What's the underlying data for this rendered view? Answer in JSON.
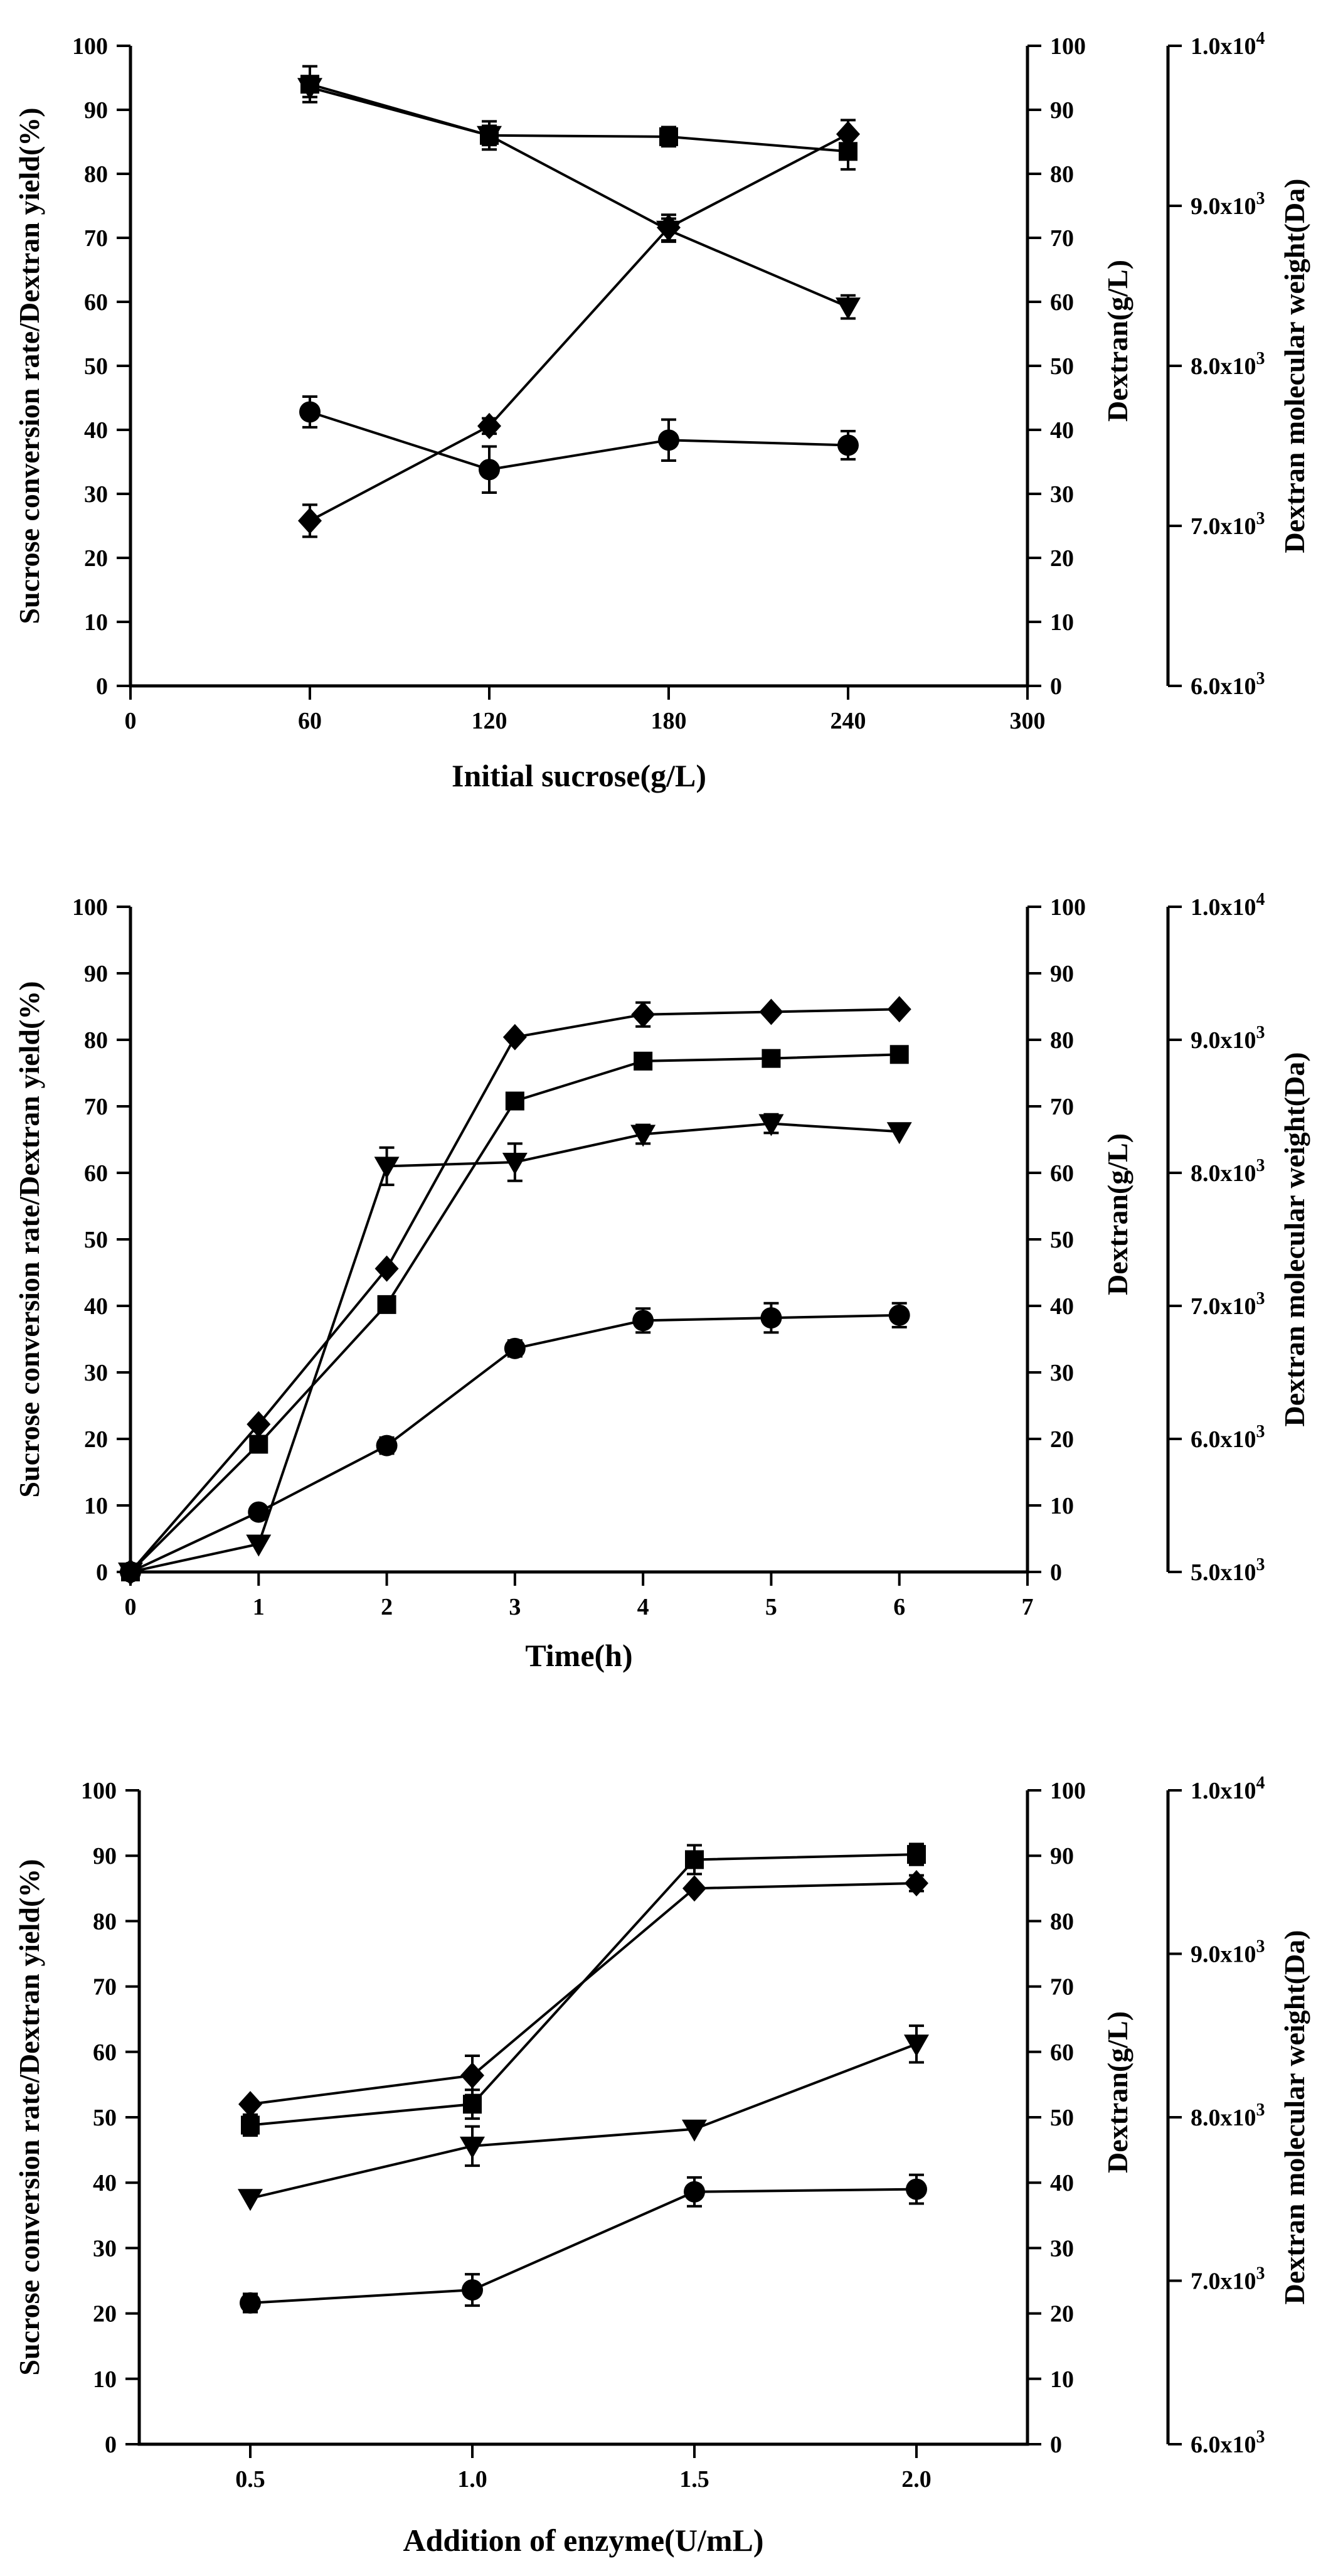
{
  "chart_data": [
    {
      "type": "line",
      "xlabel": "Initial sucrose(g/L)",
      "ylabel_left": "Sucrose conversion rate/Dextran yield(%)",
      "ylabel_right": "Dextran(g/L)",
      "ylabel_far": "Dextran molecular weight(Da)",
      "xlim": [
        0,
        300
      ],
      "x_ticks": [
        0,
        60,
        120,
        180,
        240,
        300
      ],
      "x_tick_labels": [
        "0",
        "60",
        "120",
        "180",
        "240",
        "300"
      ],
      "ylim": [
        0,
        100
      ],
      "y_ticks": [
        0,
        10,
        20,
        30,
        40,
        50,
        60,
        70,
        80,
        90,
        100
      ],
      "y_tick_labels": [
        "0",
        "10",
        "20",
        "30",
        "40",
        "50",
        "60",
        "70",
        "80",
        "90",
        "100"
      ],
      "far_ticks": [
        0,
        25,
        50,
        75,
        100
      ],
      "far_tick_labels": [
        {
          "base": "6.0x10",
          "exp": "3"
        },
        {
          "base": "7.0x10",
          "exp": "3"
        },
        {
          "base": "8.0x10",
          "exp": "3"
        },
        {
          "base": "9.0x10",
          "exp": "3"
        },
        {
          "base": "1.0x10",
          "exp": "4"
        }
      ],
      "series": [
        {
          "name": "square",
          "marker": "square",
          "x": [
            60,
            120,
            180,
            240
          ],
          "y": [
            94.0,
            86.0,
            85.8,
            83.5
          ],
          "err": [
            2.8,
            2.2,
            1.5,
            2.8
          ]
        },
        {
          "name": "diamond",
          "marker": "diamond",
          "x": [
            60,
            120,
            180,
            240
          ],
          "y": [
            25.8,
            40.6,
            71.6,
            86.2
          ],
          "err": [
            2.5,
            1.2,
            2.0,
            2.2
          ]
        },
        {
          "name": "triangle",
          "marker": "triangle",
          "x": [
            60,
            120,
            180,
            240
          ],
          "y": [
            93.5,
            86.0,
            71.2,
            59.2
          ],
          "err": [
            1.5,
            1.5,
            1.8,
            1.8
          ]
        },
        {
          "name": "circle",
          "marker": "circle",
          "x": [
            60,
            120,
            180,
            240
          ],
          "y": [
            42.8,
            33.8,
            38.4,
            37.6
          ],
          "err": [
            2.4,
            3.6,
            3.2,
            2.2
          ]
        }
      ]
    },
    {
      "type": "line",
      "xlabel": "Time(h)",
      "ylabel_left": "Sucrose conversion rate/Dextran yield(%)",
      "ylabel_right": "Dextran(g/L)",
      "ylabel_far": "Dextran molecular weight(Da)",
      "xlim": [
        0,
        7
      ],
      "x_ticks": [
        0,
        1,
        2,
        3,
        4,
        5,
        6,
        7
      ],
      "x_tick_labels": [
        "0",
        "1",
        "2",
        "3",
        "4",
        "5",
        "6",
        "7"
      ],
      "ylim": [
        0,
        100
      ],
      "y_ticks": [
        0,
        10,
        20,
        30,
        40,
        50,
        60,
        70,
        80,
        90,
        100
      ],
      "y_tick_labels": [
        "0",
        "10",
        "20",
        "30",
        "40",
        "50",
        "60",
        "70",
        "80",
        "90",
        "100"
      ],
      "far_ticks": [
        0,
        20,
        40,
        60,
        80,
        100
      ],
      "far_tick_labels": [
        {
          "base": "5.0x10",
          "exp": "3"
        },
        {
          "base": "6.0x10",
          "exp": "3"
        },
        {
          "base": "7.0x10",
          "exp": "3"
        },
        {
          "base": "8.0x10",
          "exp": "3"
        },
        {
          "base": "9.0x10",
          "exp": "3"
        },
        {
          "base": "1.0x10",
          "exp": "4"
        }
      ],
      "series": [
        {
          "name": "diamond",
          "marker": "diamond",
          "x": [
            0,
            1,
            2,
            3,
            4,
            5,
            6
          ],
          "y": [
            0,
            22.2,
            45.6,
            80.4,
            83.8,
            84.2,
            84.6
          ],
          "err": [
            0,
            0,
            0,
            0,
            1.8,
            0,
            0
          ]
        },
        {
          "name": "square",
          "marker": "square",
          "x": [
            0,
            1,
            2,
            3,
            4,
            5,
            6
          ],
          "y": [
            0,
            19.2,
            40.2,
            70.8,
            76.8,
            77.2,
            77.8
          ],
          "err": [
            0,
            0,
            0,
            0,
            0,
            0,
            0
          ]
        },
        {
          "name": "triangle",
          "marker": "triangle",
          "x": [
            0,
            1,
            2,
            3,
            4,
            5,
            6
          ],
          "y": [
            0,
            4.2,
            61.0,
            61.6,
            65.8,
            67.4,
            66.2
          ],
          "err": [
            0,
            0,
            2.8,
            2.8,
            1.4,
            1.4,
            0
          ]
        },
        {
          "name": "circle",
          "marker": "circle",
          "x": [
            0,
            1,
            2,
            3,
            4,
            5,
            6
          ],
          "y": [
            0,
            9.0,
            19.0,
            33.6,
            37.8,
            38.2,
            38.6
          ],
          "err": [
            0,
            0,
            1.2,
            1.2,
            1.8,
            2.2,
            1.8
          ]
        }
      ]
    },
    {
      "type": "line",
      "xlabel": "Addition of enzyme(U/mL)",
      "ylabel_left": "Sucrose conversion rate/Dextran yield(%)",
      "ylabel_right": "Dextran(g/L)",
      "ylabel_far": "Dextran molecular weight(Da)",
      "xlim": [
        0.25,
        2.25
      ],
      "x_ticks": [
        0.5,
        1.0,
        1.5,
        2.0
      ],
      "x_tick_labels": [
        "0.5",
        "1.0",
        "1.5",
        "2.0"
      ],
      "ylim": [
        0,
        100
      ],
      "y_ticks": [
        0,
        10,
        20,
        30,
        40,
        50,
        60,
        70,
        80,
        90,
        100
      ],
      "y_tick_labels": [
        "0",
        "10",
        "20",
        "30",
        "40",
        "50",
        "60",
        "70",
        "80",
        "90",
        "100"
      ],
      "far_ticks": [
        0,
        25,
        50,
        75,
        100
      ],
      "far_tick_labels": [
        {
          "base": "6.0x10",
          "exp": "3"
        },
        {
          "base": "7.0x10",
          "exp": "3"
        },
        {
          "base": "8.0x10",
          "exp": "3"
        },
        {
          "base": "9.0x10",
          "exp": "3"
        },
        {
          "base": "1.0x10",
          "exp": "4"
        }
      ],
      "series": [
        {
          "name": "square",
          "marker": "square",
          "x": [
            0.5,
            1.0,
            1.5,
            2.0
          ],
          "y": [
            48.8,
            52.0,
            89.4,
            90.2
          ],
          "err": [
            1.6,
            2.2,
            2.2,
            1.6
          ]
        },
        {
          "name": "diamond",
          "marker": "diamond",
          "x": [
            0.5,
            1.0,
            1.5,
            2.0
          ],
          "y": [
            52.0,
            56.4,
            85.0,
            85.8
          ],
          "err": [
            0,
            3.0,
            0,
            1.2
          ]
        },
        {
          "name": "triangle",
          "marker": "triangle",
          "x": [
            0.5,
            1.0,
            1.5,
            2.0
          ],
          "y": [
            37.6,
            45.6,
            48.2,
            61.2
          ],
          "err": [
            0,
            3.0,
            0,
            2.8
          ]
        },
        {
          "name": "circle",
          "marker": "circle",
          "x": [
            0.5,
            1.0,
            1.5,
            2.0
          ],
          "y": [
            21.6,
            23.6,
            38.6,
            39.0
          ],
          "err": [
            1.4,
            2.4,
            2.2,
            2.2
          ]
        }
      ]
    }
  ]
}
